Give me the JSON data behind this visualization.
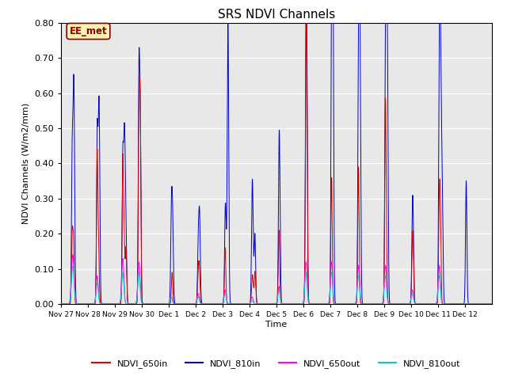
{
  "title": "SRS NDVI Channels",
  "xlabel": "Time",
  "ylabel": "NDVI Channels (W/m2/mm)",
  "ylim": [
    0.0,
    0.8
  ],
  "yticks": [
    0.0,
    0.1,
    0.2,
    0.3,
    0.4,
    0.5,
    0.6,
    0.7,
    0.8
  ],
  "background_color": "#e8e8e8",
  "annotation_text": "EE_met",
  "annotation_color": "#8B0000",
  "annotation_bg": "#f5f5b0",
  "series_colors": {
    "NDVI_650in": "#dd0000",
    "NDVI_810in": "#0000cc",
    "NDVI_650out": "#ff00ff",
    "NDVI_810out": "#00cccc"
  },
  "xtick_labels": [
    "Nov 27",
    "Nov 28",
    "Nov 29",
    "Nov 30",
    "Dec 1",
    "Dec 2",
    "Dec 3",
    "Dec 4",
    "Dec 5",
    "Dec 6",
    "Dec 7",
    "Dec 8",
    "Dec 9",
    "Dec 10",
    "Dec 11",
    "Dec 12"
  ],
  "figsize": [
    6.4,
    4.8
  ],
  "dpi": 100
}
